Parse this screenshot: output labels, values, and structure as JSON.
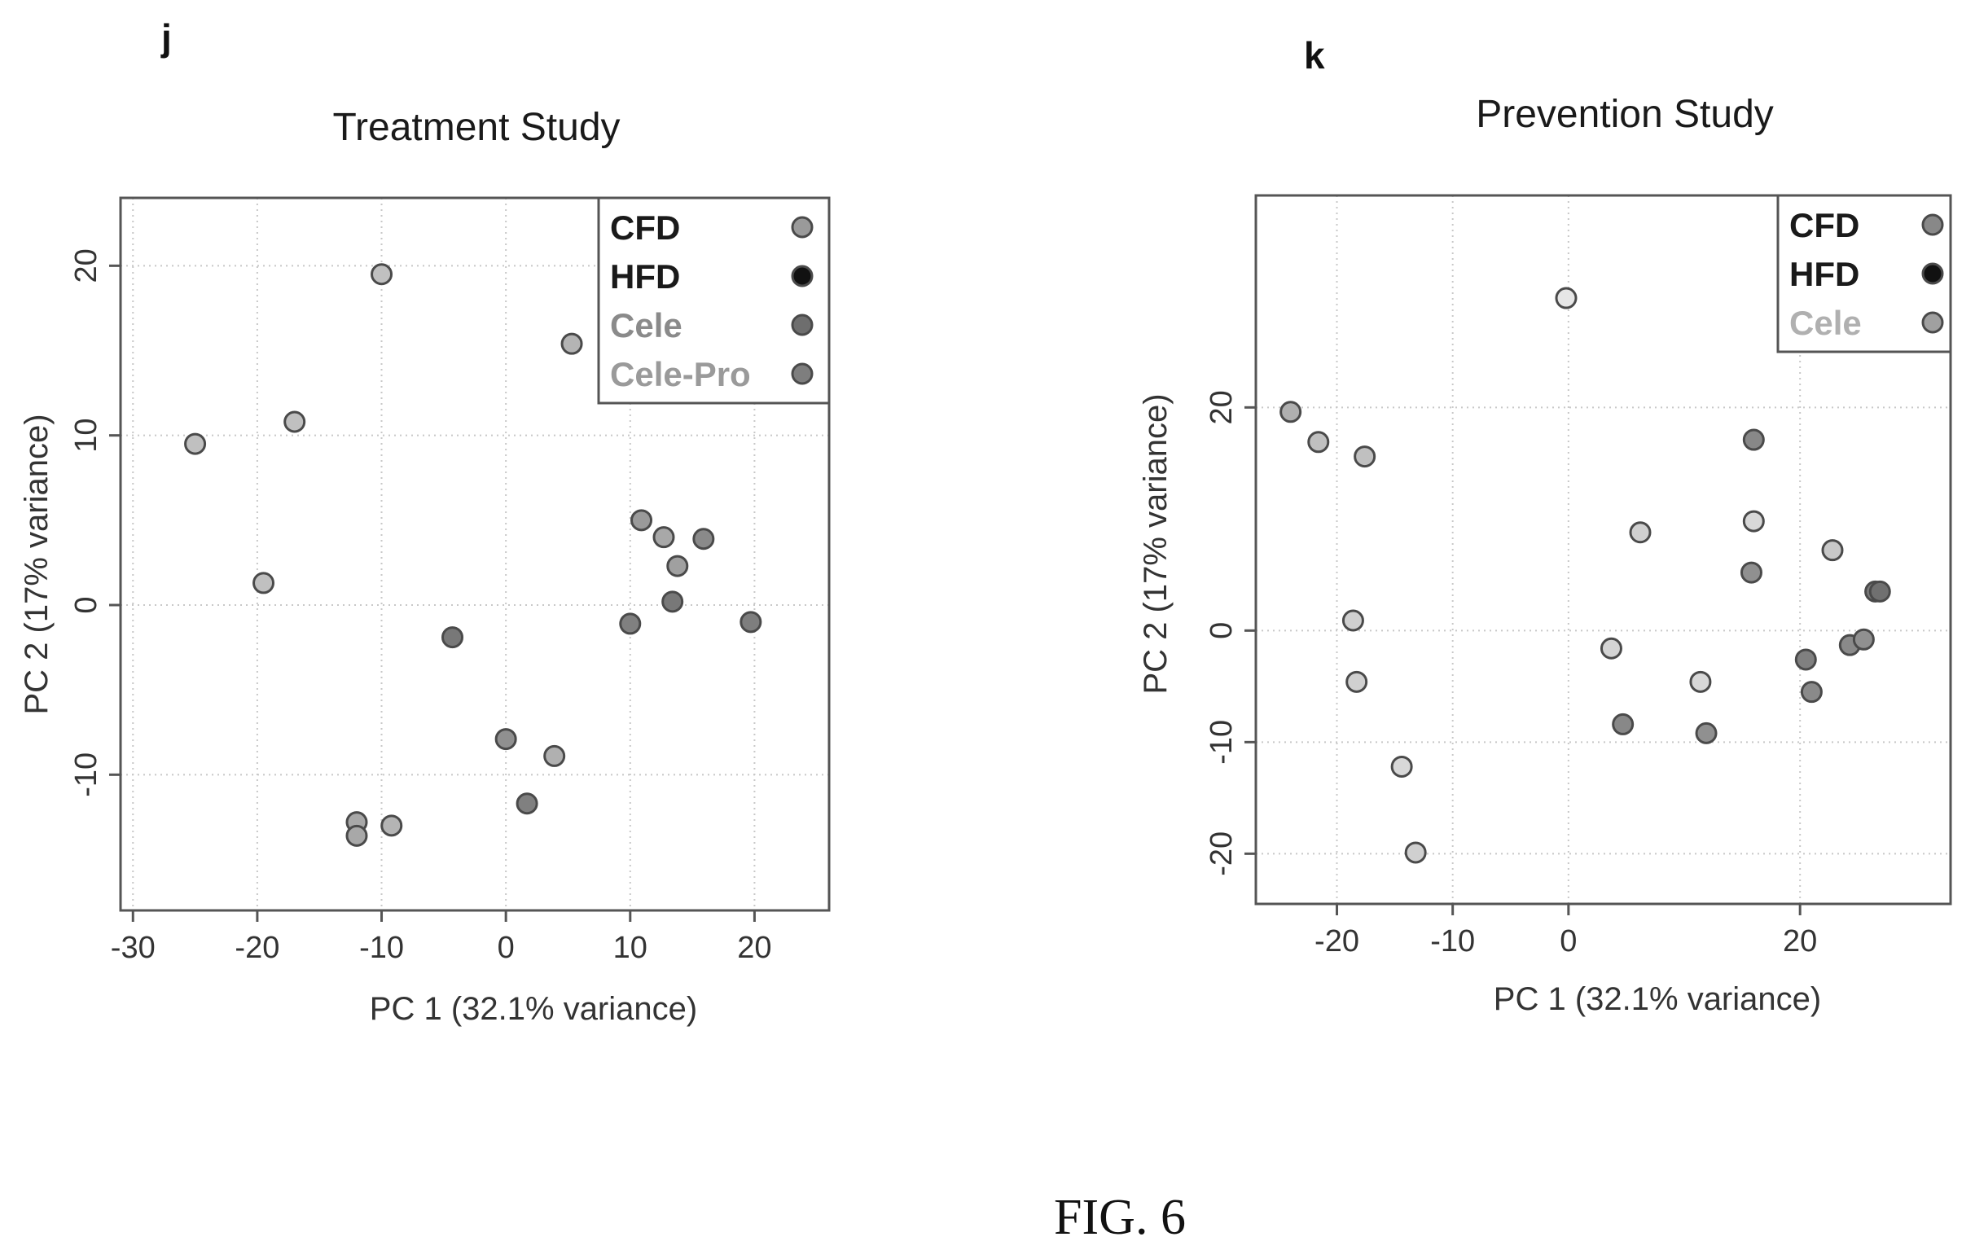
{
  "figure_caption": "FIG. 6",
  "chart_data": [
    {
      "type": "scatter",
      "panel": "j",
      "title": "Treatment Study",
      "xlabel": "PC 1 (32.1% variance)",
      "ylabel": "PC 2 (17% variance)",
      "xlim": [
        -31,
        26
      ],
      "ylim": [
        -18,
        24
      ],
      "xticks": [
        -30,
        -20,
        -10,
        0,
        10,
        20
      ],
      "yticks": [
        -10,
        0,
        10,
        20
      ],
      "grid": true,
      "legend_position": "top-right",
      "legend": [
        {
          "label": "CFD",
          "color": "#9a9a9a",
          "text_color": "#1a1a1a"
        },
        {
          "label": "HFD",
          "color": "#111111",
          "text_color": "#1a1a1a"
        },
        {
          "label": "Cele",
          "color": "#6e6e6e",
          "text_color": "#8a8a8a"
        },
        {
          "label": "Cele-Pro",
          "color": "#7e7e7e",
          "text_color": "#9a9a9a"
        }
      ],
      "points": [
        {
          "x": -10,
          "y": 19.5,
          "color": "#c0c0c0"
        },
        {
          "x": -25,
          "y": 9.5,
          "color": "#c0c0c0"
        },
        {
          "x": -17,
          "y": 10.8,
          "color": "#c0c0c0"
        },
        {
          "x": -19.5,
          "y": 1.3,
          "color": "#c0c0c0"
        },
        {
          "x": 5.3,
          "y": 15.4,
          "color": "#b4b4b4"
        },
        {
          "x": -12,
          "y": -12.8,
          "color": "#a8a8a8"
        },
        {
          "x": -12,
          "y": -13.6,
          "color": "#a8a8a8"
        },
        {
          "x": -9.2,
          "y": -13,
          "color": "#b4b4b4"
        },
        {
          "x": -4.3,
          "y": -1.9,
          "color": "#787878"
        },
        {
          "x": 0,
          "y": -7.9,
          "color": "#909090"
        },
        {
          "x": 3.9,
          "y": -8.9,
          "color": "#b0b0b0"
        },
        {
          "x": 1.7,
          "y": -11.7,
          "color": "#808080"
        },
        {
          "x": 10.9,
          "y": 5,
          "color": "#9a9a9a"
        },
        {
          "x": 12.7,
          "y": 4,
          "color": "#a8a8a8"
        },
        {
          "x": 13.8,
          "y": 2.3,
          "color": "#a0a0a0"
        },
        {
          "x": 15.9,
          "y": 3.9,
          "color": "#8a8a8a"
        },
        {
          "x": 10,
          "y": -1.1,
          "color": "#808080"
        },
        {
          "x": 13.4,
          "y": 0.2,
          "color": "#787878"
        },
        {
          "x": 19.7,
          "y": -1,
          "color": "#7e7e7e"
        }
      ]
    },
    {
      "type": "scatter",
      "panel": "k",
      "title": "Prevention Study",
      "xlabel": "PC 1 (32.1% variance)",
      "ylabel": "PC 2 (17% variance)",
      "xlim": [
        -27,
        33
      ],
      "ylim": [
        -24.5,
        39
      ],
      "xticks": [
        -20,
        -10,
        0,
        20
      ],
      "yticks": [
        -20,
        -10,
        0,
        20
      ],
      "grid": true,
      "legend_position": "top-right",
      "legend": [
        {
          "label": "CFD",
          "color": "#888888",
          "text_color": "#1a1a1a"
        },
        {
          "label": "HFD",
          "color": "#111111",
          "text_color": "#1a1a1a"
        },
        {
          "label": "Cele",
          "color": "#a0a0a0",
          "text_color": "#b0b0b0"
        }
      ],
      "points": [
        {
          "x": -0.2,
          "y": 29.8,
          "color": "#e6e6e6"
        },
        {
          "x": -24,
          "y": 19.6,
          "color": "#b0b0b0"
        },
        {
          "x": -21.6,
          "y": 16.9,
          "color": "#c0c0c0"
        },
        {
          "x": -17.6,
          "y": 15.6,
          "color": "#c0c0c0"
        },
        {
          "x": 16,
          "y": 17.1,
          "color": "#888888"
        },
        {
          "x": 16,
          "y": 9.8,
          "color": "#d8d8d8"
        },
        {
          "x": 6.2,
          "y": 8.8,
          "color": "#d0d0d0"
        },
        {
          "x": 22.8,
          "y": 7.2,
          "color": "#c8c8c8"
        },
        {
          "x": 15.8,
          "y": 5.2,
          "color": "#909090"
        },
        {
          "x": 26.5,
          "y": 3.5,
          "color": "#7a7a7a"
        },
        {
          "x": 26.9,
          "y": 3.5,
          "color": "#707070"
        },
        {
          "x": -18.6,
          "y": 0.9,
          "color": "#d0d0d0"
        },
        {
          "x": 3.7,
          "y": -1.6,
          "color": "#d4d4d4"
        },
        {
          "x": 20.5,
          "y": -2.6,
          "color": "#808080"
        },
        {
          "x": 24.3,
          "y": -1.3,
          "color": "#8a8a8a"
        },
        {
          "x": 25.5,
          "y": -0.8,
          "color": "#909090"
        },
        {
          "x": -18.3,
          "y": -4.6,
          "color": "#d0d0d0"
        },
        {
          "x": 11.4,
          "y": -4.6,
          "color": "#d8d8d8"
        },
        {
          "x": 21,
          "y": -5.5,
          "color": "#8a8a8a"
        },
        {
          "x": 4.7,
          "y": -8.4,
          "color": "#888888"
        },
        {
          "x": 11.9,
          "y": -9.2,
          "color": "#909090"
        },
        {
          "x": -14.4,
          "y": -12.2,
          "color": "#d8d8d8"
        },
        {
          "x": -13.2,
          "y": -19.9,
          "color": "#d0d0d0"
        }
      ]
    }
  ]
}
